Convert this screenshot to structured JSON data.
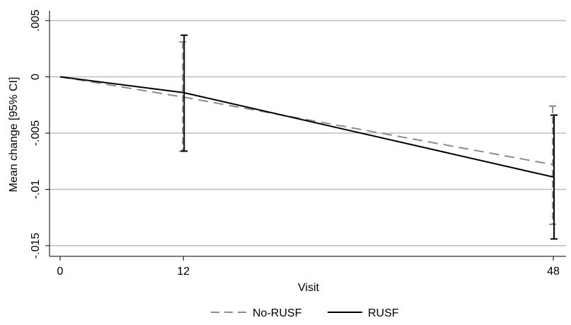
{
  "chart_data": {
    "type": "line",
    "title": "",
    "xlabel": "Visit",
    "ylabel": "Mean change [95% CI]",
    "x_ticks": [
      0,
      12,
      48
    ],
    "x_tick_labels": [
      "0",
      "12",
      "48"
    ],
    "y_ticks": [
      0.005,
      0,
      -0.005,
      -0.01,
      -0.015
    ],
    "y_tick_labels": [
      ".005",
      "0",
      "-.005",
      "-.01",
      "-.015"
    ],
    "xlim": [
      0,
      48
    ],
    "ylim": [
      -0.0155,
      0.0055
    ],
    "grid": true,
    "legend_position": "bottom",
    "series": [
      {
        "name": "No-RUSF",
        "color": "#8c8c8c",
        "dash": "dashed",
        "points": [
          {
            "x": 0,
            "y": 0
          },
          {
            "x": 12,
            "y": -0.0018,
            "ci_low": -0.0066,
            "ci_high": 0.0031
          },
          {
            "x": 48,
            "y": -0.0078,
            "ci_low": -0.0131,
            "ci_high": -0.0026
          }
        ]
      },
      {
        "name": "RUSF",
        "color": "#000000",
        "dash": "solid",
        "points": [
          {
            "x": 0,
            "y": 0
          },
          {
            "x": 12,
            "y": -0.0014,
            "ci_low": -0.0066,
            "ci_high": 0.0037
          },
          {
            "x": 48,
            "y": -0.0089,
            "ci_low": -0.0144,
            "ci_high": -0.0034
          }
        ]
      }
    ]
  }
}
